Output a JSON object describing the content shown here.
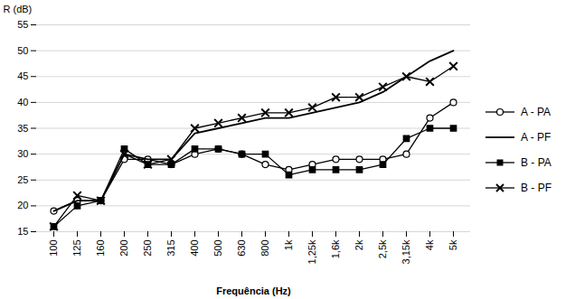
{
  "chart_data": {
    "type": "line",
    "categories": [
      "100",
      "125",
      "160",
      "200",
      "250",
      "315",
      "400",
      "500",
      "630",
      "800",
      "1k",
      "1,25k",
      "1,6k",
      "2k",
      "2,5k",
      "3,15k",
      "4k",
      "5k"
    ],
    "series": [
      {
        "name": "A - PA",
        "color": "#000000",
        "marker": "circle",
        "values": [
          19,
          21,
          21,
          29,
          29,
          28,
          30,
          31,
          30,
          28,
          27,
          28,
          29,
          29,
          29,
          30,
          37,
          40
        ]
      },
      {
        "name": "A - PF",
        "color": "#000000",
        "marker": "none",
        "values": [
          19,
          21,
          21,
          30,
          29,
          29,
          34,
          35,
          36,
          37,
          37,
          38,
          39,
          40,
          42,
          45,
          48,
          50
        ]
      },
      {
        "name": "B - PA",
        "color": "#000000",
        "marker": "square",
        "values": [
          16,
          20,
          21,
          31,
          28,
          28,
          31,
          31,
          30,
          30,
          26,
          27,
          27,
          27,
          28,
          33,
          35,
          35
        ]
      },
      {
        "name": "B - PF",
        "color": "#000000",
        "marker": "x",
        "values": [
          16,
          22,
          21,
          30,
          28,
          29,
          35,
          36,
          37,
          38,
          38,
          39,
          41,
          41,
          43,
          45,
          44,
          47
        ]
      }
    ],
    "xlabel": "Frequência (Hz)",
    "ylabel": "R (dB)",
    "ylim": [
      15,
      55
    ],
    "yticks": [
      15,
      20,
      25,
      30,
      35,
      40,
      45,
      50,
      55
    ],
    "grid": true,
    "legend": "right"
  }
}
